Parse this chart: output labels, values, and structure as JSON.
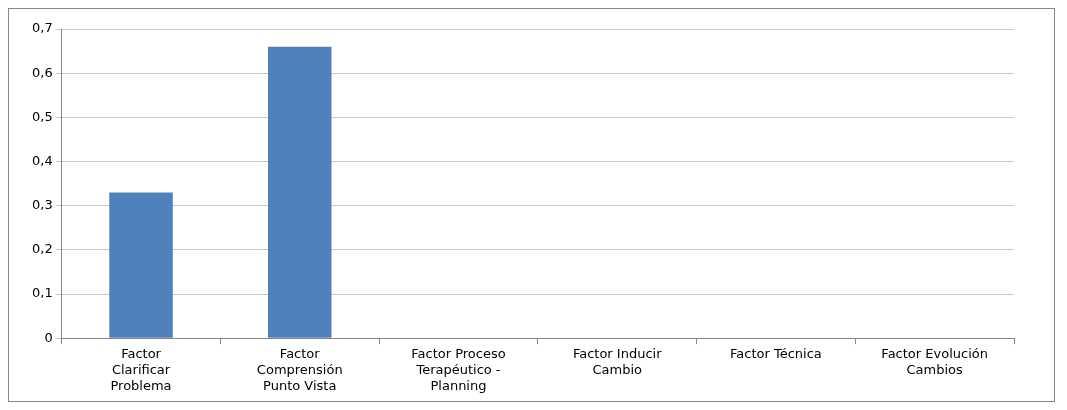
{
  "chart_data": {
    "type": "bar",
    "categories": [
      "Factor Clarificar Problema",
      "Factor Comprensión Punto Vista",
      "Factor Proceso Terapéutico - Planning",
      "Factor Inducir Cambio",
      "Factor Técnica",
      "Factor Evolución Cambios"
    ],
    "values": [
      0.33,
      0.66,
      0,
      0,
      0,
      0
    ],
    "color": "#4f81bd",
    "ylim": [
      0,
      0.7
    ],
    "yticks": [
      0,
      {
        "value": 0.1,
        "label": "0,1"
      },
      {
        "value": 0.2,
        "label": "0,2"
      },
      {
        "value": 0.3,
        "label": "0,3"
      },
      {
        "value": 0.4,
        "label": "0,4"
      },
      {
        "value": 0.5,
        "label": "0,5"
      },
      {
        "value": 0.6,
        "label": "0,6"
      },
      {
        "value": 0.7,
        "label": "0,7"
      }
    ],
    "grid": "y",
    "legend": false
  }
}
